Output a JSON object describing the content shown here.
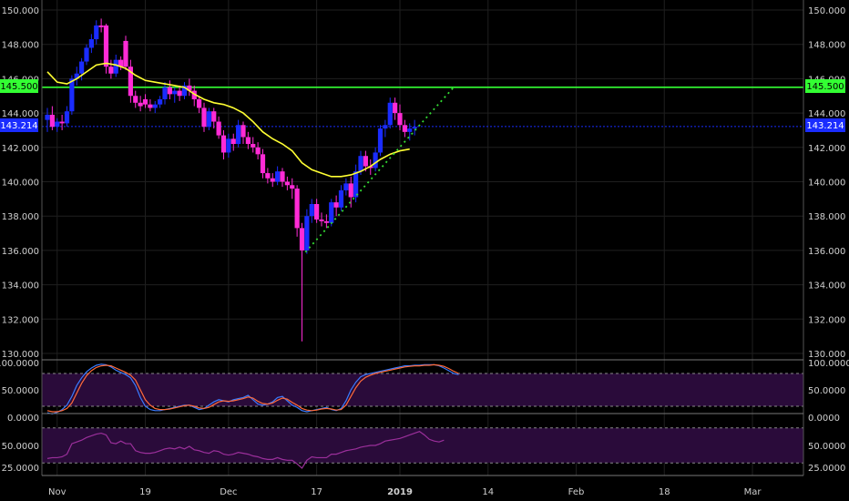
{
  "colors": {
    "background": "#000000",
    "grid": "#1f1f1f",
    "up_candle": "#1a2cff",
    "down_candle": "#ff2bd6",
    "sma": "#ffff33",
    "resistance_line": "#33ff33",
    "trendline": "#33dd33",
    "current_price_line": "#1a2cff",
    "stoch_k": "#3a7bff",
    "stoch_d": "#ff6a3a",
    "rsi": "#9b2f9b",
    "indicator_band": "#2a0b3a",
    "axis_text": "#d0d0d0"
  },
  "price_labels": {
    "resistance": "145.500",
    "current": "143.214"
  },
  "chart_data": [
    {
      "type": "candlestick",
      "ylim": [
        130,
        150
      ],
      "y_ticks": [
        "130.000",
        "132.000",
        "134.000",
        "136.000",
        "138.000",
        "140.000",
        "142.000",
        "144.000",
        "146.000",
        "148.000",
        "150.000"
      ],
      "y_tick_values": [
        130,
        132,
        134,
        136,
        138,
        140,
        142,
        144,
        146,
        148,
        150
      ],
      "x_ticks": [
        "Nov",
        "19",
        "Dec",
        "17",
        "2019",
        "14",
        "Feb",
        "18",
        "Mar"
      ],
      "x_tick_days": [
        2,
        20,
        37,
        55,
        72,
        90,
        108,
        126,
        144
      ],
      "resistance_level": 145.5,
      "current_price": 143.214,
      "candles": [
        {
          "d": 0,
          "o": 143.6,
          "h": 144.3,
          "l": 142.9,
          "c": 143.9
        },
        {
          "d": 1,
          "o": 143.9,
          "h": 144.4,
          "l": 143.0,
          "c": 143.2
        },
        {
          "d": 2,
          "o": 143.2,
          "h": 143.7,
          "l": 142.9,
          "c": 143.5
        },
        {
          "d": 3,
          "o": 143.5,
          "h": 143.9,
          "l": 143.0,
          "c": 143.4
        },
        {
          "d": 4,
          "o": 143.4,
          "h": 144.4,
          "l": 143.2,
          "c": 144.1
        },
        {
          "d": 5,
          "o": 144.1,
          "h": 146.2,
          "l": 143.9,
          "c": 146.0
        },
        {
          "d": 6,
          "o": 146.0,
          "h": 146.7,
          "l": 145.6,
          "c": 146.3
        },
        {
          "d": 7,
          "o": 146.3,
          "h": 147.2,
          "l": 145.9,
          "c": 147.0
        },
        {
          "d": 8,
          "o": 147.0,
          "h": 148.0,
          "l": 146.8,
          "c": 147.8
        },
        {
          "d": 9,
          "o": 147.8,
          "h": 148.6,
          "l": 147.5,
          "c": 148.3
        },
        {
          "d": 10,
          "o": 148.3,
          "h": 149.4,
          "l": 148.0,
          "c": 149.1
        },
        {
          "d": 11,
          "o": 149.1,
          "h": 149.5,
          "l": 148.7,
          "c": 149.0
        },
        {
          "d": 12,
          "o": 149.1,
          "h": 149.2,
          "l": 146.3,
          "c": 146.7
        },
        {
          "d": 13,
          "o": 146.7,
          "h": 147.1,
          "l": 146.0,
          "c": 146.3
        },
        {
          "d": 14,
          "o": 146.3,
          "h": 147.4,
          "l": 146.1,
          "c": 147.1
        },
        {
          "d": 15,
          "o": 147.1,
          "h": 147.3,
          "l": 146.5,
          "c": 146.7
        },
        {
          "d": 16,
          "o": 148.2,
          "h": 148.5,
          "l": 146.5,
          "c": 146.7
        },
        {
          "d": 17,
          "o": 146.7,
          "h": 147.1,
          "l": 144.6,
          "c": 145.0
        },
        {
          "d": 18,
          "o": 145.0,
          "h": 145.3,
          "l": 144.3,
          "c": 144.6
        },
        {
          "d": 19,
          "o": 144.6,
          "h": 145.0,
          "l": 144.1,
          "c": 144.4
        },
        {
          "d": 20,
          "o": 144.8,
          "h": 145.1,
          "l": 144.3,
          "c": 144.5
        },
        {
          "d": 21,
          "o": 144.5,
          "h": 144.8,
          "l": 144.1,
          "c": 144.3
        },
        {
          "d": 22,
          "o": 144.3,
          "h": 144.7,
          "l": 144.0,
          "c": 144.5
        },
        {
          "d": 23,
          "o": 144.5,
          "h": 145.0,
          "l": 144.3,
          "c": 144.8
        },
        {
          "d": 24,
          "o": 144.8,
          "h": 145.8,
          "l": 144.5,
          "c": 145.5
        },
        {
          "d": 25,
          "o": 145.5,
          "h": 145.9,
          "l": 144.8,
          "c": 145.1
        },
        {
          "d": 26,
          "o": 145.1,
          "h": 145.5,
          "l": 144.6,
          "c": 145.3
        },
        {
          "d": 27,
          "o": 145.3,
          "h": 145.6,
          "l": 144.7,
          "c": 145.0
        },
        {
          "d": 28,
          "o": 145.0,
          "h": 145.8,
          "l": 144.8,
          "c": 145.6
        },
        {
          "d": 29,
          "o": 145.6,
          "h": 146.0,
          "l": 145.0,
          "c": 145.3
        },
        {
          "d": 30,
          "o": 145.3,
          "h": 145.6,
          "l": 144.4,
          "c": 144.8
        },
        {
          "d": 31,
          "o": 144.8,
          "h": 145.0,
          "l": 144.0,
          "c": 144.3
        },
        {
          "d": 32,
          "o": 144.3,
          "h": 144.6,
          "l": 142.9,
          "c": 143.2
        },
        {
          "d": 33,
          "o": 143.2,
          "h": 144.3,
          "l": 143.0,
          "c": 144.1
        },
        {
          "d": 34,
          "o": 144.1,
          "h": 144.3,
          "l": 143.1,
          "c": 143.5
        },
        {
          "d": 35,
          "o": 143.5,
          "h": 143.8,
          "l": 142.5,
          "c": 142.7
        },
        {
          "d": 36,
          "o": 142.7,
          "h": 143.0,
          "l": 141.3,
          "c": 141.7
        },
        {
          "d": 37,
          "o": 141.7,
          "h": 142.8,
          "l": 141.4,
          "c": 142.5
        },
        {
          "d": 38,
          "o": 142.5,
          "h": 142.8,
          "l": 141.8,
          "c": 142.2
        },
        {
          "d": 39,
          "o": 142.2,
          "h": 143.6,
          "l": 142.0,
          "c": 143.3
        },
        {
          "d": 40,
          "o": 143.3,
          "h": 143.5,
          "l": 142.2,
          "c": 142.6
        },
        {
          "d": 41,
          "o": 142.6,
          "h": 142.9,
          "l": 141.9,
          "c": 142.2
        },
        {
          "d": 42,
          "o": 142.2,
          "h": 142.6,
          "l": 141.7,
          "c": 142.0
        },
        {
          "d": 43,
          "o": 142.0,
          "h": 142.3,
          "l": 141.3,
          "c": 141.6
        },
        {
          "d": 44,
          "o": 141.6,
          "h": 141.9,
          "l": 140.2,
          "c": 140.5
        },
        {
          "d": 45,
          "o": 140.5,
          "h": 140.8,
          "l": 139.9,
          "c": 140.2
        },
        {
          "d": 46,
          "o": 140.2,
          "h": 140.5,
          "l": 139.7,
          "c": 140.0
        },
        {
          "d": 47,
          "o": 140.0,
          "h": 140.9,
          "l": 139.8,
          "c": 140.6
        },
        {
          "d": 48,
          "o": 140.6,
          "h": 140.8,
          "l": 139.7,
          "c": 140.0
        },
        {
          "d": 49,
          "o": 140.0,
          "h": 140.3,
          "l": 139.5,
          "c": 139.8
        },
        {
          "d": 50,
          "o": 139.8,
          "h": 140.2,
          "l": 139.0,
          "c": 139.6
        },
        {
          "d": 51,
          "o": 139.6,
          "h": 139.8,
          "l": 136.8,
          "c": 137.3
        },
        {
          "d": 52,
          "o": 137.3,
          "h": 137.6,
          "l": 130.7,
          "c": 136.0
        },
        {
          "d": 53,
          "o": 136.0,
          "h": 138.4,
          "l": 135.8,
          "c": 138.0
        },
        {
          "d": 54,
          "o": 138.0,
          "h": 139.0,
          "l": 137.6,
          "c": 138.7
        },
        {
          "d": 55,
          "o": 138.7,
          "h": 139.0,
          "l": 137.6,
          "c": 137.8
        },
        {
          "d": 56,
          "o": 137.8,
          "h": 138.2,
          "l": 137.4,
          "c": 137.7
        },
        {
          "d": 57,
          "o": 137.7,
          "h": 138.1,
          "l": 137.3,
          "c": 137.6
        },
        {
          "d": 58,
          "o": 137.6,
          "h": 139.0,
          "l": 137.4,
          "c": 138.8
        },
        {
          "d": 59,
          "o": 138.8,
          "h": 139.2,
          "l": 138.0,
          "c": 138.5
        },
        {
          "d": 60,
          "o": 138.5,
          "h": 139.8,
          "l": 138.3,
          "c": 139.5
        },
        {
          "d": 61,
          "o": 139.5,
          "h": 140.2,
          "l": 139.2,
          "c": 139.9
        },
        {
          "d": 62,
          "o": 139.9,
          "h": 140.3,
          "l": 138.5,
          "c": 139.1
        },
        {
          "d": 63,
          "o": 139.1,
          "h": 141.0,
          "l": 138.8,
          "c": 140.6
        },
        {
          "d": 64,
          "o": 140.6,
          "h": 141.8,
          "l": 140.4,
          "c": 141.5
        },
        {
          "d": 65,
          "o": 141.5,
          "h": 141.8,
          "l": 140.6,
          "c": 140.9
        },
        {
          "d": 66,
          "o": 140.9,
          "h": 141.3,
          "l": 140.4,
          "c": 140.8
        },
        {
          "d": 67,
          "o": 140.8,
          "h": 142.0,
          "l": 140.6,
          "c": 141.7
        },
        {
          "d": 68,
          "o": 141.7,
          "h": 143.3,
          "l": 141.5,
          "c": 143.1
        },
        {
          "d": 69,
          "o": 143.1,
          "h": 143.6,
          "l": 142.6,
          "c": 143.3
        },
        {
          "d": 70,
          "o": 143.3,
          "h": 144.9,
          "l": 143.1,
          "c": 144.6
        },
        {
          "d": 71,
          "o": 144.6,
          "h": 144.9,
          "l": 143.6,
          "c": 144.0
        },
        {
          "d": 72,
          "o": 144.0,
          "h": 144.5,
          "l": 143.0,
          "c": 143.3
        },
        {
          "d": 73,
          "o": 143.3,
          "h": 143.6,
          "l": 142.6,
          "c": 142.9
        },
        {
          "d": 74,
          "o": 142.9,
          "h": 143.4,
          "l": 142.4,
          "c": 143.1
        },
        {
          "d": 75,
          "o": 143.1,
          "h": 143.6,
          "l": 142.7,
          "c": 143.2
        }
      ],
      "sma": [
        {
          "d": 0,
          "v": 146.4
        },
        {
          "d": 2,
          "v": 145.8
        },
        {
          "d": 4,
          "v": 145.7
        },
        {
          "d": 6,
          "v": 146.0
        },
        {
          "d": 8,
          "v": 146.4
        },
        {
          "d": 10,
          "v": 146.8
        },
        {
          "d": 12,
          "v": 146.9
        },
        {
          "d": 14,
          "v": 146.8
        },
        {
          "d": 16,
          "v": 146.6
        },
        {
          "d": 18,
          "v": 146.2
        },
        {
          "d": 20,
          "v": 145.9
        },
        {
          "d": 22,
          "v": 145.8
        },
        {
          "d": 24,
          "v": 145.7
        },
        {
          "d": 26,
          "v": 145.6
        },
        {
          "d": 28,
          "v": 145.5
        },
        {
          "d": 30,
          "v": 145.1
        },
        {
          "d": 32,
          "v": 144.8
        },
        {
          "d": 34,
          "v": 144.6
        },
        {
          "d": 36,
          "v": 144.5
        },
        {
          "d": 38,
          "v": 144.3
        },
        {
          "d": 40,
          "v": 144.0
        },
        {
          "d": 42,
          "v": 143.5
        },
        {
          "d": 44,
          "v": 142.9
        },
        {
          "d": 46,
          "v": 142.5
        },
        {
          "d": 48,
          "v": 142.2
        },
        {
          "d": 50,
          "v": 141.8
        },
        {
          "d": 52,
          "v": 141.1
        },
        {
          "d": 54,
          "v": 140.7
        },
        {
          "d": 56,
          "v": 140.5
        },
        {
          "d": 58,
          "v": 140.3
        },
        {
          "d": 60,
          "v": 140.3
        },
        {
          "d": 62,
          "v": 140.4
        },
        {
          "d": 64,
          "v": 140.6
        },
        {
          "d": 66,
          "v": 140.9
        },
        {
          "d": 68,
          "v": 141.3
        },
        {
          "d": 70,
          "v": 141.6
        },
        {
          "d": 72,
          "v": 141.8
        },
        {
          "d": 74,
          "v": 141.9
        }
      ],
      "trendline": [
        {
          "d": 52.7,
          "v": 135.9
        },
        {
          "d": 83.3,
          "v": 145.6
        }
      ]
    },
    {
      "type": "line",
      "name": "stochastic",
      "ylim": [
        -5,
        105
      ],
      "y_ticks": [
        "0.0000",
        "50.0000",
        "100.0000"
      ],
      "y_tick_values": [
        0,
        50,
        100
      ],
      "upper_level": 80,
      "lower_level": 20,
      "series": [
        {
          "values": [
            8,
            6,
            9,
            14,
            22,
            38,
            58,
            72,
            83,
            90,
            95,
            97,
            96,
            92,
            86,
            82,
            78,
            72,
            58,
            36,
            20,
            14,
            12,
            12,
            14,
            16,
            18,
            20,
            22,
            22,
            18,
            14,
            16,
            22,
            28,
            32,
            30,
            28,
            32,
            34,
            36,
            40,
            32,
            24,
            22,
            24,
            28,
            36,
            38,
            30,
            22,
            18,
            12,
            10,
            12,
            14,
            16,
            18,
            14,
            12,
            16,
            30,
            50,
            64,
            74,
            78,
            80,
            82,
            84,
            86,
            88,
            90,
            92,
            94,
            94,
            95,
            95,
            96,
            96,
            96,
            94,
            90,
            85,
            80,
            78
          ]
        },
        {
          "values": [
            12,
            10,
            10,
            12,
            16,
            26,
            44,
            62,
            76,
            85,
            91,
            94,
            95,
            94,
            90,
            86,
            82,
            77,
            68,
            50,
            32,
            22,
            16,
            14,
            14,
            15,
            17,
            19,
            21,
            22,
            20,
            17,
            16,
            18,
            23,
            28,
            30,
            29,
            30,
            32,
            34,
            37,
            35,
            29,
            25,
            24,
            26,
            31,
            35,
            33,
            27,
            22,
            16,
            13,
            12,
            13,
            15,
            16,
            15,
            13,
            14,
            22,
            38,
            54,
            66,
            73,
            77,
            80,
            82,
            84,
            86,
            88,
            90,
            92,
            93,
            94,
            94,
            95,
            95,
            96,
            95,
            93,
            89,
            84,
            80
          ]
        }
      ]
    },
    {
      "type": "line",
      "name": "rsi",
      "ylim": [
        20,
        75
      ],
      "y_ticks": [
        "25.0000",
        "50.0000"
      ],
      "y_tick_values": [
        25,
        50
      ],
      "upper_level": 70,
      "lower_level": 30,
      "series": [
        {
          "values": [
            35,
            36,
            36,
            37,
            40,
            52,
            54,
            56,
            59,
            61,
            63,
            64,
            62,
            53,
            52,
            55,
            52,
            52,
            44,
            42,
            41,
            41,
            42,
            44,
            46,
            47,
            46,
            48,
            46,
            49,
            45,
            44,
            42,
            41,
            44,
            43,
            40,
            39,
            40,
            42,
            41,
            40,
            38,
            37,
            35,
            34,
            34,
            36,
            34,
            33,
            33,
            29,
            24,
            33,
            37,
            36,
            36,
            36,
            40,
            40,
            42,
            44,
            45,
            46,
            48,
            49,
            50,
            50,
            52,
            55,
            56,
            57,
            58,
            60,
            62,
            64,
            66,
            62,
            57,
            55,
            54,
            56
          ]
        }
      ]
    }
  ]
}
